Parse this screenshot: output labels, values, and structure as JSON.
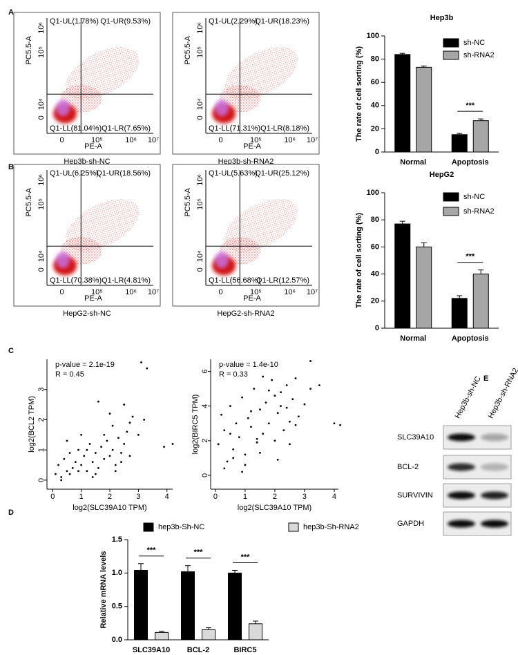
{
  "panel_labels": [
    "A",
    "B",
    "C",
    "D",
    "E"
  ],
  "flow_plots": [
    {
      "caption": "Hep3b-sh-NC",
      "x_label": "PE-A",
      "y_label": "PC5.5-A",
      "x_tick_labels": [
        "0",
        "10⁵",
        "10⁶",
        "10⁷"
      ],
      "y_tick_labels": [
        "0",
        "10⁴",
        "10⁵",
        "10⁶"
      ],
      "quadrants": {
        "ul": "Q1-UL(1.78%)",
        "ur": "Q1-UR(9.53%)",
        "ll": "Q1-LL(81.04%)",
        "lr": "Q1-LR(7.65%)"
      }
    },
    {
      "caption": "Hep3b-sh-RNA2",
      "x_label": "PE-A",
      "y_label": "PC5.5-A",
      "x_tick_labels": [
        "0",
        "10⁵",
        "10⁶",
        "10⁷"
      ],
      "y_tick_labels": [
        "0",
        "10⁴",
        "10⁵",
        "10⁶"
      ],
      "quadrants": {
        "ul": "Q1-UL(2.29%)",
        "ur": "Q1-UR(18.23%)",
        "ll": "Q1-LL(71.31%)",
        "lr": "Q1-LR(8.18%)"
      }
    },
    {
      "caption": "HepG2-sh-NC",
      "x_label": "PE-A",
      "y_label": "PC5.5-A",
      "x_tick_labels": [
        "0",
        "10⁵",
        "10⁶",
        "10⁷"
      ],
      "y_tick_labels": [
        "0",
        "10⁴",
        "10⁵",
        "10⁶"
      ],
      "quadrants": {
        "ul": "Q1-UL(6.25%)",
        "ur": "Q1-UR(18.56%)",
        "ll": "Q1-LL(70.38%)",
        "lr": "Q1-LR(4.81%)"
      }
    },
    {
      "caption": "HepG2-sh-RNA2",
      "x_label": "PE-A",
      "y_label": "PC5.5-A",
      "x_tick_labels": [
        "0",
        "10⁵",
        "10⁶",
        "10⁷"
      ],
      "y_tick_labels": [
        "0",
        "10⁴",
        "10⁵",
        "10⁶"
      ],
      "quadrants": {
        "ul": "Q1-UL(5.63%)",
        "ur": "Q1-UR(25.12%)",
        "ll": "Q1-LL(56.68%)",
        "lr": "Q1-LR(12.57%)"
      }
    }
  ],
  "chart_data": [
    {
      "type": "bar",
      "title": "Hep3b",
      "y_label": "The rate of cell sorting (%)",
      "categories": [
        "Normal",
        "Apoptosis"
      ],
      "series": [
        {
          "name": "sh-NC",
          "color": "#000000",
          "values": [
            84,
            15
          ],
          "errors": [
            1,
            1
          ]
        },
        {
          "name": "sh-RNA2",
          "color": "#a6a6a6",
          "values": [
            73,
            27
          ],
          "errors": [
            1,
            1.5
          ]
        }
      ],
      "ylim": [
        0,
        100
      ],
      "yticks": [
        0,
        20,
        40,
        60,
        80,
        100
      ],
      "annotations": [
        "***"
      ]
    },
    {
      "type": "bar",
      "title": "HepG2",
      "y_label": "The rate of cell sorting (%)",
      "categories": [
        "Normal",
        "Apoptosis"
      ],
      "series": [
        {
          "name": "sh-NC",
          "color": "#000000",
          "values": [
            77,
            22
          ],
          "errors": [
            2,
            2
          ]
        },
        {
          "name": "sh-RNA2",
          "color": "#a6a6a6",
          "values": [
            60,
            40
          ],
          "errors": [
            3,
            3
          ]
        }
      ],
      "ylim": [
        0,
        100
      ],
      "yticks": [
        0,
        20,
        40,
        60,
        80,
        100
      ],
      "annotations": [
        "***"
      ]
    },
    {
      "type": "scatter",
      "x_label": "log2(SLC39A10 TPM)",
      "y_label": "log2(BCL2 TPM)",
      "annotations": [
        "p-value = 2.1e-19",
        "R = 0.45"
      ],
      "color": "#000000",
      "x": [
        0.1,
        0.2,
        0.3,
        0.4,
        0.5,
        0.6,
        0.7,
        0.8,
        0.9,
        1.0,
        1.1,
        1.2,
        1.3,
        1.4,
        1.5,
        1.6,
        1.7,
        1.8,
        1.9,
        2.0,
        2.1,
        2.2,
        2.3,
        2.4,
        2.5,
        2.6,
        2.7,
        2.8,
        3.0,
        3.2,
        0.3,
        0.6,
        0.9,
        1.2,
        1.5,
        1.8,
        2.1,
        2.4,
        2.7,
        3.1,
        3.3,
        3.9,
        4.2,
        1.6,
        2.0,
        2.5,
        0.5,
        1.0,
        1.4,
        2.2
      ],
      "values": [
        0.2,
        0.5,
        0.1,
        0.7,
        0.3,
        0.9,
        0.4,
        0.6,
        1.0,
        0.5,
        0.8,
        0.3,
        1.2,
        0.6,
        0.9,
        0.4,
        1.1,
        0.7,
        1.3,
        0.8,
        1.0,
        0.5,
        1.4,
        0.9,
        1.2,
        1.6,
        0.8,
        2.1,
        1.5,
        2.0,
        0.0,
        0.2,
        0.3,
        1.0,
        0.2,
        1.5,
        1.8,
        0.6,
        1.9,
        3.9,
        3.7,
        1.1,
        1.2,
        2.6,
        2.2,
        2.5,
        1.3,
        1.5,
        0.1,
        0.3
      ],
      "xlim": [
        -0.2,
        4.2
      ],
      "ylim": [
        -0.3,
        4.0
      ],
      "xticks": [
        0,
        1,
        2,
        3,
        4
      ],
      "yticks": [
        0,
        1,
        2,
        3
      ]
    },
    {
      "type": "scatter",
      "x_label": "log2(SLC39A10 TPM)",
      "y_label": "log2(BIRC5 TPM)",
      "annotations": [
        "p-value = 1.4e-10",
        "R = 0.33"
      ],
      "color": "#000000",
      "x": [
        0.1,
        0.2,
        0.3,
        0.4,
        0.5,
        0.6,
        0.7,
        0.8,
        0.9,
        1.0,
        1.1,
        1.2,
        1.3,
        1.4,
        1.5,
        1.6,
        1.7,
        1.8,
        1.9,
        2.0,
        2.1,
        2.2,
        2.3,
        2.4,
        2.5,
        2.6,
        2.7,
        2.8,
        3.0,
        3.2,
        0.3,
        0.6,
        0.9,
        1.2,
        1.5,
        1.8,
        2.1,
        2.4,
        2.7,
        3.2,
        3.5,
        4.0,
        4.2,
        1.6,
        2.0,
        2.5,
        0.5,
        1.0,
        1.4,
        2.2
      ],
      "values": [
        1.8,
        3.5,
        2.6,
        0.8,
        4.0,
        1.5,
        3.0,
        2.2,
        4.5,
        1.2,
        3.3,
        2.8,
        5.0,
        1.9,
        3.8,
        2.4,
        4.2,
        3.0,
        5.5,
        2.0,
        3.6,
        4.8,
        2.6,
        5.2,
        3.1,
        4.4,
        5.6,
        3.4,
        4.1,
        5.0,
        0.4,
        1.0,
        0.2,
        3.7,
        1.3,
        4.9,
        0.9,
        3.9,
        2.9,
        6.6,
        5.2,
        3.0,
        2.9,
        5.7,
        4.6,
        1.8,
        2.4,
        0.6,
        2.1,
        4.0
      ],
      "xlim": [
        -0.16,
        4.14
      ],
      "ylim": [
        -0.8,
        6.7
      ],
      "xticks": [
        0,
        1,
        2,
        3,
        4
      ],
      "yticks": [
        0,
        2,
        4,
        6
      ]
    },
    {
      "type": "bar",
      "y_label": "Relative mRNA levels",
      "categories": [
        "SLC39A10",
        "BCL-2",
        "BIRC5"
      ],
      "series": [
        {
          "name": "hep3b-Sh-NC",
          "color": "#000000",
          "values": [
            1.04,
            1.02,
            1.0
          ],
          "errors": [
            0.1,
            0.09,
            0.04
          ]
        },
        {
          "name": "hep3b-Sh-RNA2",
          "color": "#d9d9d9",
          "values": [
            0.11,
            0.15,
            0.24
          ],
          "errors": [
            0.02,
            0.03,
            0.04
          ]
        }
      ],
      "ylim": [
        0,
        1.5
      ],
      "yticks": [
        {
          "value": 0,
          "label": "0.0"
        },
        0.5,
        {
          "value": 1,
          "label": "1.0"
        },
        1.5
      ],
      "annotations": [
        "***",
        "***",
        "***"
      ]
    }
  ],
  "western_blot": {
    "samples": [
      "Hep3b-sh-NC",
      "Hep3b-sh-RNA2"
    ],
    "proteins": [
      "SLC39A10",
      "BCL-2",
      "SURVIVIN",
      "GAPDH"
    ]
  }
}
